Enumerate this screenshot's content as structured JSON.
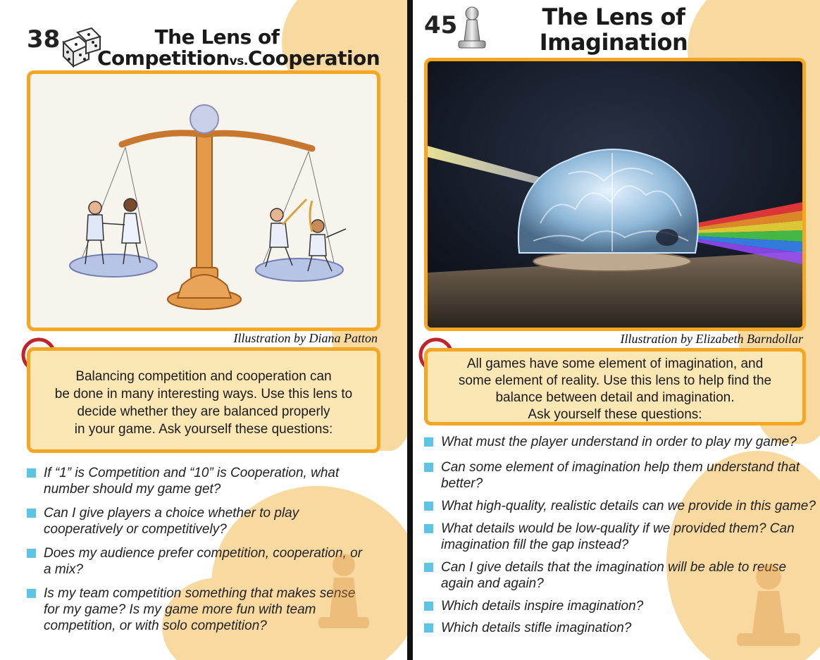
{
  "left_card": {
    "number": "38",
    "title_line1": "The Lens of",
    "title_part_a": "Competition",
    "title_vs": "vs.",
    "title_part_b": "Cooperation",
    "icon": "dice-icon",
    "credit": "Illustration by Diana Patton",
    "description_lines": [
      "Balancing competition and cooperation can",
      "be done in many interesting ways. Use this lens to",
      "decide whether they are balanced properly",
      "in your game. Ask yourself these questions:"
    ],
    "questions": [
      "If “1” is Competition and “10” is Cooperation, what number should my game get?",
      "Can I give players a choice whether to play cooperatively or competitively?",
      "Does my audience prefer competition, cooperation, or a mix?",
      "Is my team competition something that makes sense for my game? Is my game more fun with team competition, or with solo competition?"
    ]
  },
  "right_card": {
    "number": "45",
    "title_line1": "The Lens of",
    "title_line2": "Imagination",
    "icon": "pawn-icon",
    "credit": "Illustration by Elizabeth Barndollar",
    "description_lines": [
      "All games have some element of imagination, and",
      "some element of reality. Use this lens to help find the",
      "balance between detail and imagination.",
      "Ask yourself these questions:"
    ],
    "questions": [
      "What must the player understand in order to play my game?",
      "Can some element of imagination help them understand that better?",
      "What high-quality, realistic details can we provide in this game?",
      "What details would be low-quality if we provided them? Can imagination fill the gap instead?",
      "Can I give details that the imagination will be able to reuse again and again?",
      "Which details inspire imagination?",
      "Which details stifle imagination?"
    ]
  },
  "colors": {
    "accent_orange": "#f5a623",
    "box_fill": "#fbe7b3",
    "splash": "#f8d9a0",
    "bullet_blue": "#5fc3e4"
  }
}
